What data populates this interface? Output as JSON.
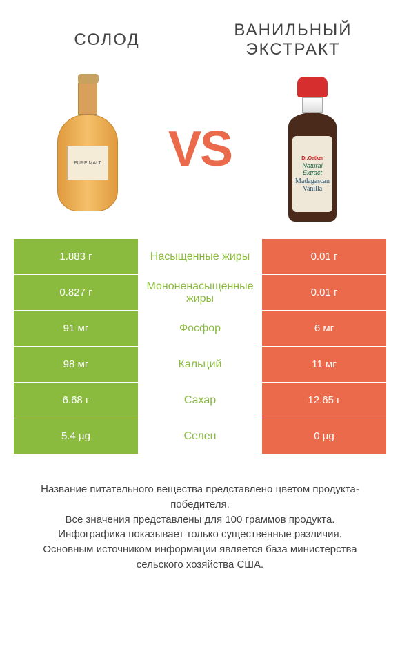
{
  "headers": {
    "left": "СОЛОД",
    "right": "ВАНИЛЬНЫЙ ЭКСТРАКТ",
    "vs": "VS"
  },
  "bottle_left_label": "PURE MALT",
  "bottle_right_label": {
    "brand": "Dr.Oetker",
    "sub": "Natural Extract",
    "main": "Madagascan Vanilla"
  },
  "colors": {
    "green": "#8bbb3e",
    "orange": "#ec6a4c",
    "background": "#ffffff",
    "text": "#444444"
  },
  "rows": [
    {
      "nutrient": "Насыщенные жиры",
      "left": "1.883 г",
      "right": "0.01 г",
      "winner": "left"
    },
    {
      "nutrient": "Мононенасыщенные жиры",
      "left": "0.827 г",
      "right": "0.01 г",
      "winner": "left"
    },
    {
      "nutrient": "Фосфор",
      "left": "91 мг",
      "right": "6 мг",
      "winner": "left"
    },
    {
      "nutrient": "Кальций",
      "left": "98 мг",
      "right": "11 мг",
      "winner": "left"
    },
    {
      "nutrient": "Сахар",
      "left": "6.68 г",
      "right": "12.65 г",
      "winner": "left"
    },
    {
      "nutrient": "Селен",
      "left": "5.4 µg",
      "right": "0 µg",
      "winner": "left"
    }
  ],
  "footer": [
    "Название питательного вещества представлено цветом продукта-победителя.",
    "Все значения представлены для 100 граммов продукта.",
    "Инфографика показывает только существенные различия.",
    "Основным источником информации является база министерства сельского хозяйства США."
  ]
}
